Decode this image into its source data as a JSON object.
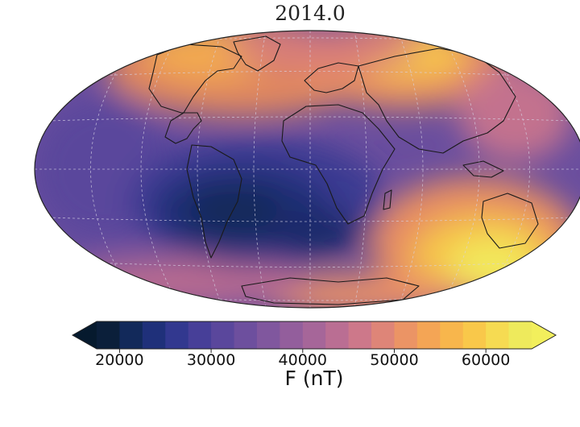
{
  "title": "2014.0",
  "colorbar": {
    "label": "F (nT)",
    "ticks": [
      "20000",
      "30000",
      "40000",
      "50000",
      "60000"
    ],
    "tick_values": [
      20000,
      30000,
      40000,
      50000,
      60000
    ],
    "min": 17500,
    "max": 65000,
    "step": 2500,
    "extend": "both",
    "colormap": [
      "#0b1f3a",
      "#12295a",
      "#1f307a",
      "#32388f",
      "#473f98",
      "#5a479c",
      "#6d4f9e",
      "#80579e",
      "#935e9c",
      "#a66699",
      "#ba6e93",
      "#cd788a",
      "#de8578",
      "#eb9465",
      "#f4a555",
      "#f8b64c",
      "#f9c84a",
      "#f6db52",
      "#eeea5c"
    ]
  },
  "map": {
    "projection": "Hammer / Aitoff (equal-area)",
    "gridlines": true,
    "coastlines": true,
    "feature": "South Atlantic Anomaly (minimum field intensity over South America / South Atlantic)"
  }
}
